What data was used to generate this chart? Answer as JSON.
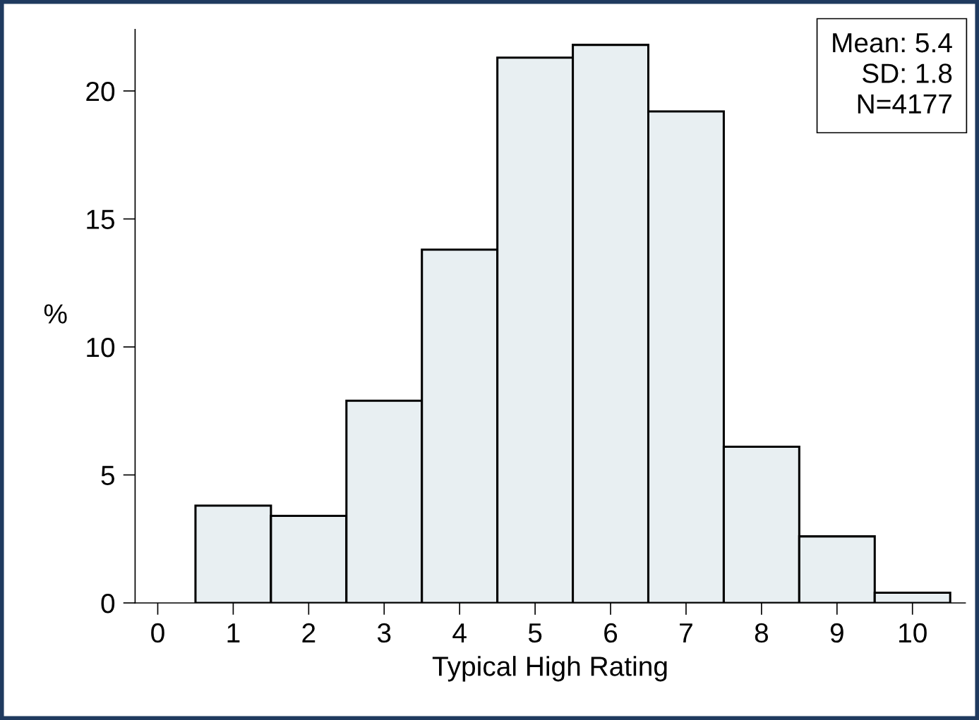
{
  "chart_data": {
    "type": "histogram",
    "xlabel": "Typical High Rating",
    "ylabel": "%",
    "bins": [
      0.5,
      1.5,
      2.5,
      3.5,
      4.5,
      5.5,
      6.5,
      7.5,
      8.5,
      9.5,
      10.5
    ],
    "values": [
      3.8,
      3.4,
      7.9,
      13.8,
      21.3,
      21.8,
      19.2,
      6.1,
      2.6,
      0.4
    ],
    "color": "#e8eff2",
    "xlim": [
      -0.3,
      10.7
    ],
    "xticks": [
      0,
      1,
      2,
      3,
      4,
      5,
      6,
      7,
      8,
      9,
      10
    ],
    "ylim": [
      0,
      22.4
    ],
    "yticks": [
      0,
      5,
      10,
      15,
      20
    ],
    "annotations": [
      "Mean: 5.4\nSD: 1.8\nN=4177"
    ],
    "grid": false,
    "legend": false
  }
}
